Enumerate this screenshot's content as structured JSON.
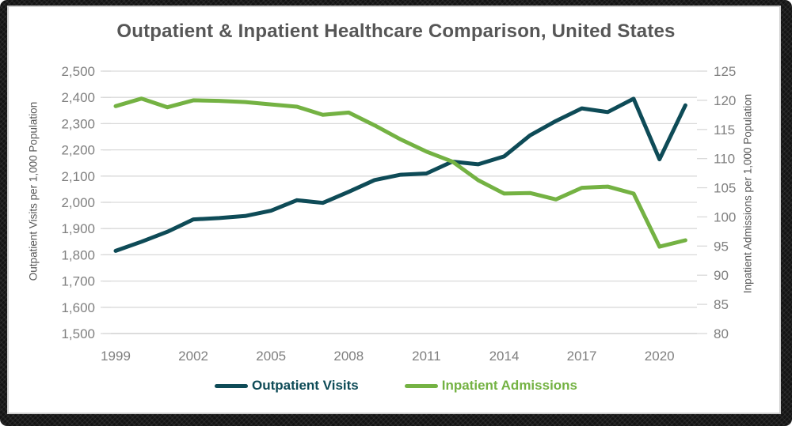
{
  "window": {
    "frame_color": "#141414",
    "card_color": "#ffffff"
  },
  "colors": {
    "title_text": "#565656",
    "axis_label_text": "#595959",
    "tick_text": "#7f7f7f",
    "gridline": "#d9d9d9",
    "axis_baseline": "#c6c6c6",
    "outpatient_line": "#0e4b57",
    "inpatient_line": "#74b243"
  },
  "chart_data": {
    "type": "line",
    "title": "Outpatient & Inpatient Healthcare Comparison, United States",
    "grid": "horizontal",
    "legend_position": "bottom",
    "x": [
      1999,
      2000,
      2001,
      2002,
      2003,
      2004,
      2005,
      2006,
      2007,
      2008,
      2009,
      2010,
      2011,
      2012,
      2013,
      2014,
      2015,
      2016,
      2017,
      2018,
      2019,
      2020,
      2021
    ],
    "x_tick_labels": [
      "1999",
      "2002",
      "2005",
      "2008",
      "2011",
      "2014",
      "2017",
      "2020"
    ],
    "x_tick_years": [
      1999,
      2002,
      2005,
      2008,
      2011,
      2014,
      2017,
      2020
    ],
    "left_axis": {
      "label": "Outpatient Visits per 1,000 Population",
      "min": 1500,
      "max": 2500,
      "tick_labels": [
        "2,500",
        "2,400",
        "2,300",
        "2,200",
        "2,100",
        "2,000",
        "1,900",
        "1,800",
        "1,700",
        "1,600",
        "1,500"
      ]
    },
    "right_axis": {
      "label": "Inpatient Admissions per 1,000 Population",
      "min": 80,
      "max": 125,
      "tick_labels": [
        "125",
        "120",
        "115",
        "110",
        "105",
        "100",
        "95",
        "90",
        "85",
        "80"
      ]
    },
    "series": [
      {
        "name": "Outpatient Visits",
        "axis": "left",
        "color": "#0e4b57",
        "values": [
          1815,
          1850,
          1888,
          1935,
          1940,
          1948,
          1968,
          2008,
          1998,
          2040,
          2085,
          2105,
          2110,
          2155,
          2145,
          2175,
          2255,
          2310,
          2358,
          2344,
          2395,
          2164,
          2370
        ]
      },
      {
        "name": "Inpatient Admissions",
        "axis": "right",
        "color": "#74b243",
        "values": [
          119.0,
          120.3,
          118.8,
          120.0,
          119.9,
          119.7,
          119.3,
          118.9,
          117.5,
          117.9,
          115.7,
          113.3,
          111.2,
          109.5,
          106.3,
          104.0,
          104.1,
          103.0,
          105.0,
          105.2,
          104.0,
          94.9,
          96.0
        ]
      }
    ]
  }
}
